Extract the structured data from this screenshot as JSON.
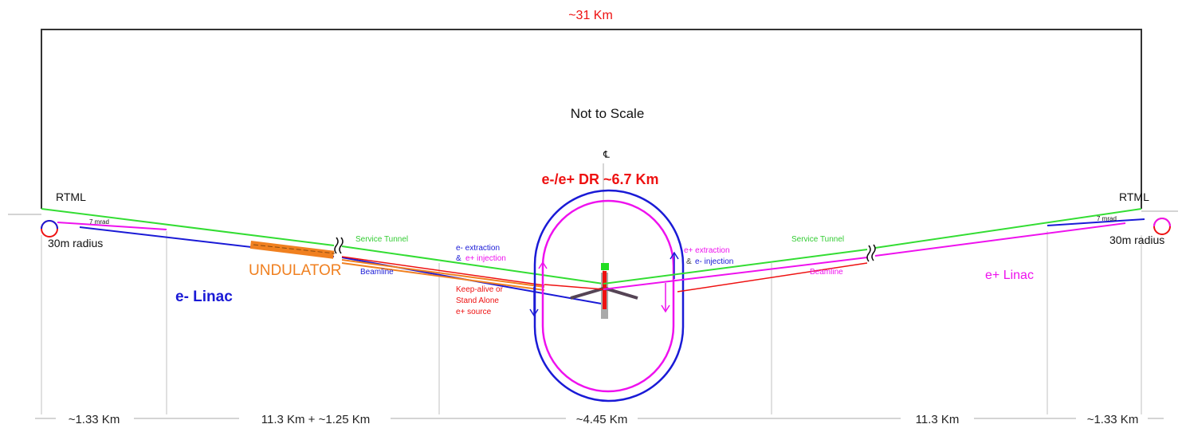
{
  "labels": {
    "total_length": "~31 Km",
    "not_to_scale": "Not to Scale",
    "centerline": "℄",
    "damping_ring": "e-/e+ DR ~6.7 Km",
    "rtml_left": "RTML",
    "rtml_right": "RTML",
    "mrad_left": "7 mrad",
    "mrad_right": "7 mrad",
    "radius_left": "30m radius",
    "radius_right": "30m radius",
    "e_linac": "e- Linac",
    "undulator": "UNDULATOR",
    "positron_linac": "e+ Linac",
    "service_tunnel_left": "Service Tunnel",
    "service_tunnel_right": "Service Tunnel",
    "beamline_left": "Beamline",
    "beamline_right": "Beamline",
    "e_extraction": "e- extraction",
    "e_injection_amp": "&",
    "eplus_injection": "e+ injection",
    "eplus_extraction": "e+ extraction",
    "e_injection_amp2": "&",
    "eminus_injection": "e- injection",
    "keep_alive_1": "Keep-alive or",
    "keep_alive_2": "Stand Alone",
    "keep_alive_3": "e+ source"
  },
  "dimensions": [
    "~1.33 Km",
    "11.3 Km + ~1.25 Km",
    "~4.45 Km",
    "11.3 Km",
    "~1.33 Km"
  ],
  "colors": {
    "frame": "#333333",
    "service_tunnel": "#33dd33",
    "electron": "#1a1ad6",
    "positron": "#ee11ee",
    "red_source": "#ee1111",
    "undulator": "#f08020",
    "dimension": "#bbbbbb",
    "text": "#222222"
  }
}
